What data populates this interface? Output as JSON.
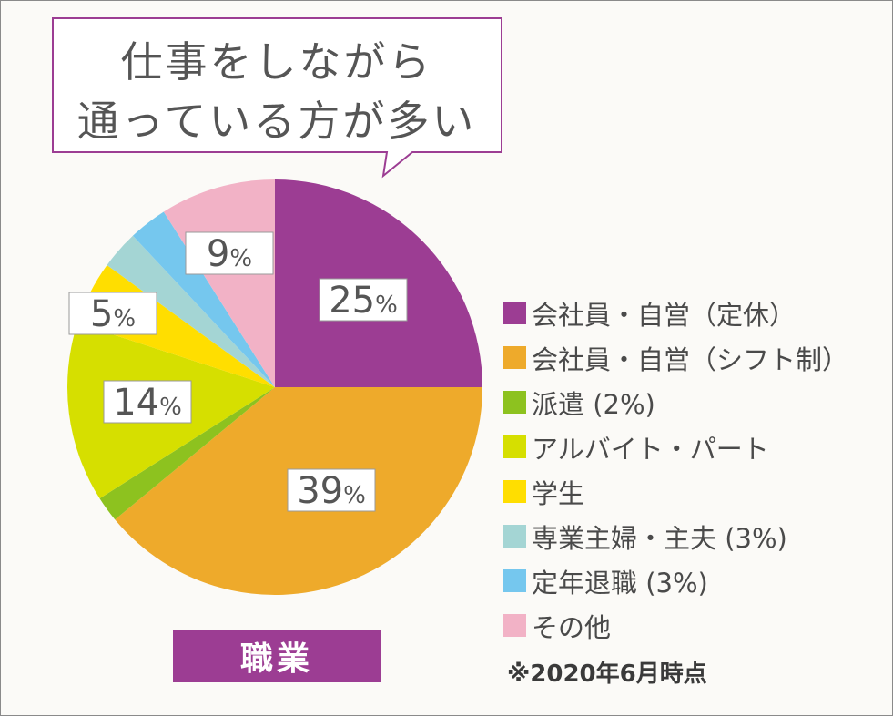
{
  "callout": {
    "line1": "仕事をしながら",
    "line2": "通っている方が多い"
  },
  "chart_data": {
    "type": "pie",
    "title": "職業",
    "note": "※2020年6月時点",
    "slices": [
      {
        "name": "会社員・自営（定休）",
        "legend": "会社員・自営（定休）",
        "value": 25,
        "label": "25",
        "color": "#9c3d93"
      },
      {
        "name": "会社員・自営（シフト制）",
        "legend": "会社員・自営（シフト制）",
        "value": 39,
        "label": "39",
        "color": "#eeaa2b"
      },
      {
        "name": "派遣",
        "legend": "派遣 (2%)",
        "value": 2,
        "label": "",
        "color": "#8dc21f"
      },
      {
        "name": "アルバイト・パート",
        "legend": "アルバイト・パート",
        "value": 14,
        "label": "14",
        "color": "#d6df00"
      },
      {
        "name": "学生",
        "legend": "学生",
        "value": 5,
        "label": "5",
        "color": "#ffde00"
      },
      {
        "name": "専業主婦・主夫",
        "legend": "専業主婦・主夫 (3%)",
        "value": 3,
        "label": "",
        "color": "#a4d5d4"
      },
      {
        "name": "定年退職",
        "legend": "定年退職 (3%)",
        "value": 3,
        "label": "",
        "color": "#75c7ee"
      },
      {
        "name": "その他",
        "legend": "その他",
        "value": 9,
        "label": "9",
        "color": "#f2b2c6"
      }
    ],
    "percent_symbol": "%"
  }
}
